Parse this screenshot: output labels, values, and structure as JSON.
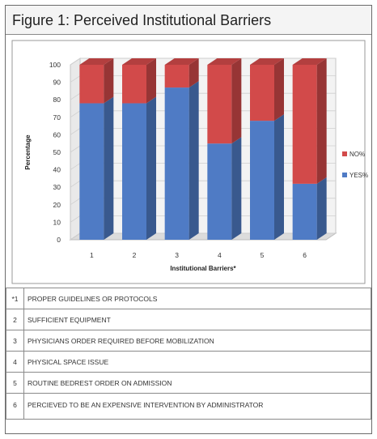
{
  "figure": {
    "title": "Figure 1: Perceived Institutional Barriers"
  },
  "chart_data": {
    "type": "bar",
    "stacked": true,
    "categories": [
      "1",
      "2",
      "3",
      "4",
      "5",
      "6"
    ],
    "series": [
      {
        "name": "YES%",
        "values": [
          78,
          78,
          87,
          55,
          68,
          32
        ],
        "color": "#4f7bc5"
      },
      {
        "name": "NO%",
        "values": [
          22,
          22,
          13,
          45,
          32,
          68
        ],
        "color": "#d24a4a"
      }
    ],
    "ylim": [
      0,
      100
    ],
    "yticks": [
      "0",
      "10",
      "20",
      "30",
      "40",
      "50",
      "60",
      "70",
      "80",
      "90",
      "100"
    ],
    "xlabel": "Institutional Barriers*",
    "ylabel": "Percentage",
    "legend": [
      "NO%",
      "YES%"
    ],
    "legend_position": "right",
    "grid": true
  },
  "barriers": [
    {
      "num": "*1",
      "text": "PROPER GUIDELINES OR PROTOCOLS"
    },
    {
      "num": "2",
      "text": "SUFFICIENT EQUIPMENT"
    },
    {
      "num": "3",
      "text": "PHYSICIANS ORDER REQUIRED BEFORE MOBILIZATION"
    },
    {
      "num": "4",
      "text": "PHYSICAL SPACE ISSUE"
    },
    {
      "num": "5",
      "text": "ROUTINE BEDREST ORDER ON ADMISSION"
    },
    {
      "num": "6",
      "text": "PERCIEVED TO BE AN EXPENSIVE INTERVENTION BY ADMINISTRATOR"
    }
  ]
}
